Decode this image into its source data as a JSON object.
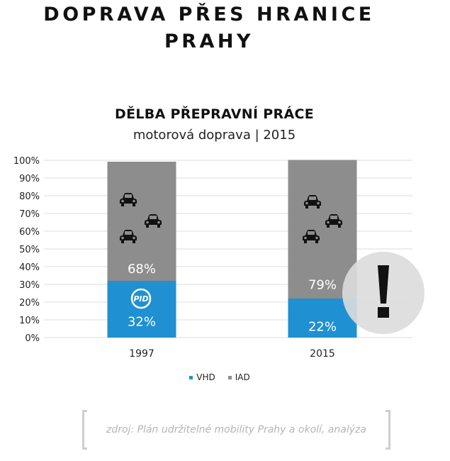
{
  "header": {
    "title_line1": "DOPRAVA PŘES HRANICE",
    "title_line2": "PRAHY"
  },
  "chart_data": {
    "type": "bar",
    "stacked": true,
    "title": "DĚLBA PŘEPRAVNÍ PRÁCE",
    "subtitle": "motorová doprava | 2015",
    "categories": [
      "1997",
      "2015"
    ],
    "series": [
      {
        "name": "VHD",
        "values": [
          32,
          22
        ],
        "labels": [
          "32%",
          "22%"
        ],
        "color": "#1f90d2"
      },
      {
        "name": "IAD",
        "values": [
          68,
          79
        ],
        "labels": [
          "68%",
          "79%"
        ],
        "color": "#8d8d8d"
      }
    ],
    "ylim": [
      0,
      100
    ],
    "yticks": [
      "0%",
      "10%",
      "20%",
      "30%",
      "40%",
      "50%",
      "60%",
      "70%",
      "80%",
      "90%",
      "100%"
    ],
    "grid": true,
    "legend_position": "bottom"
  },
  "icons": {
    "car": "car-icon",
    "pid": "pid-logo-icon",
    "alert": "exclamation-icon"
  },
  "source": "zdroj: Plán udržitelné mobility Prahy a okolí, analýza"
}
